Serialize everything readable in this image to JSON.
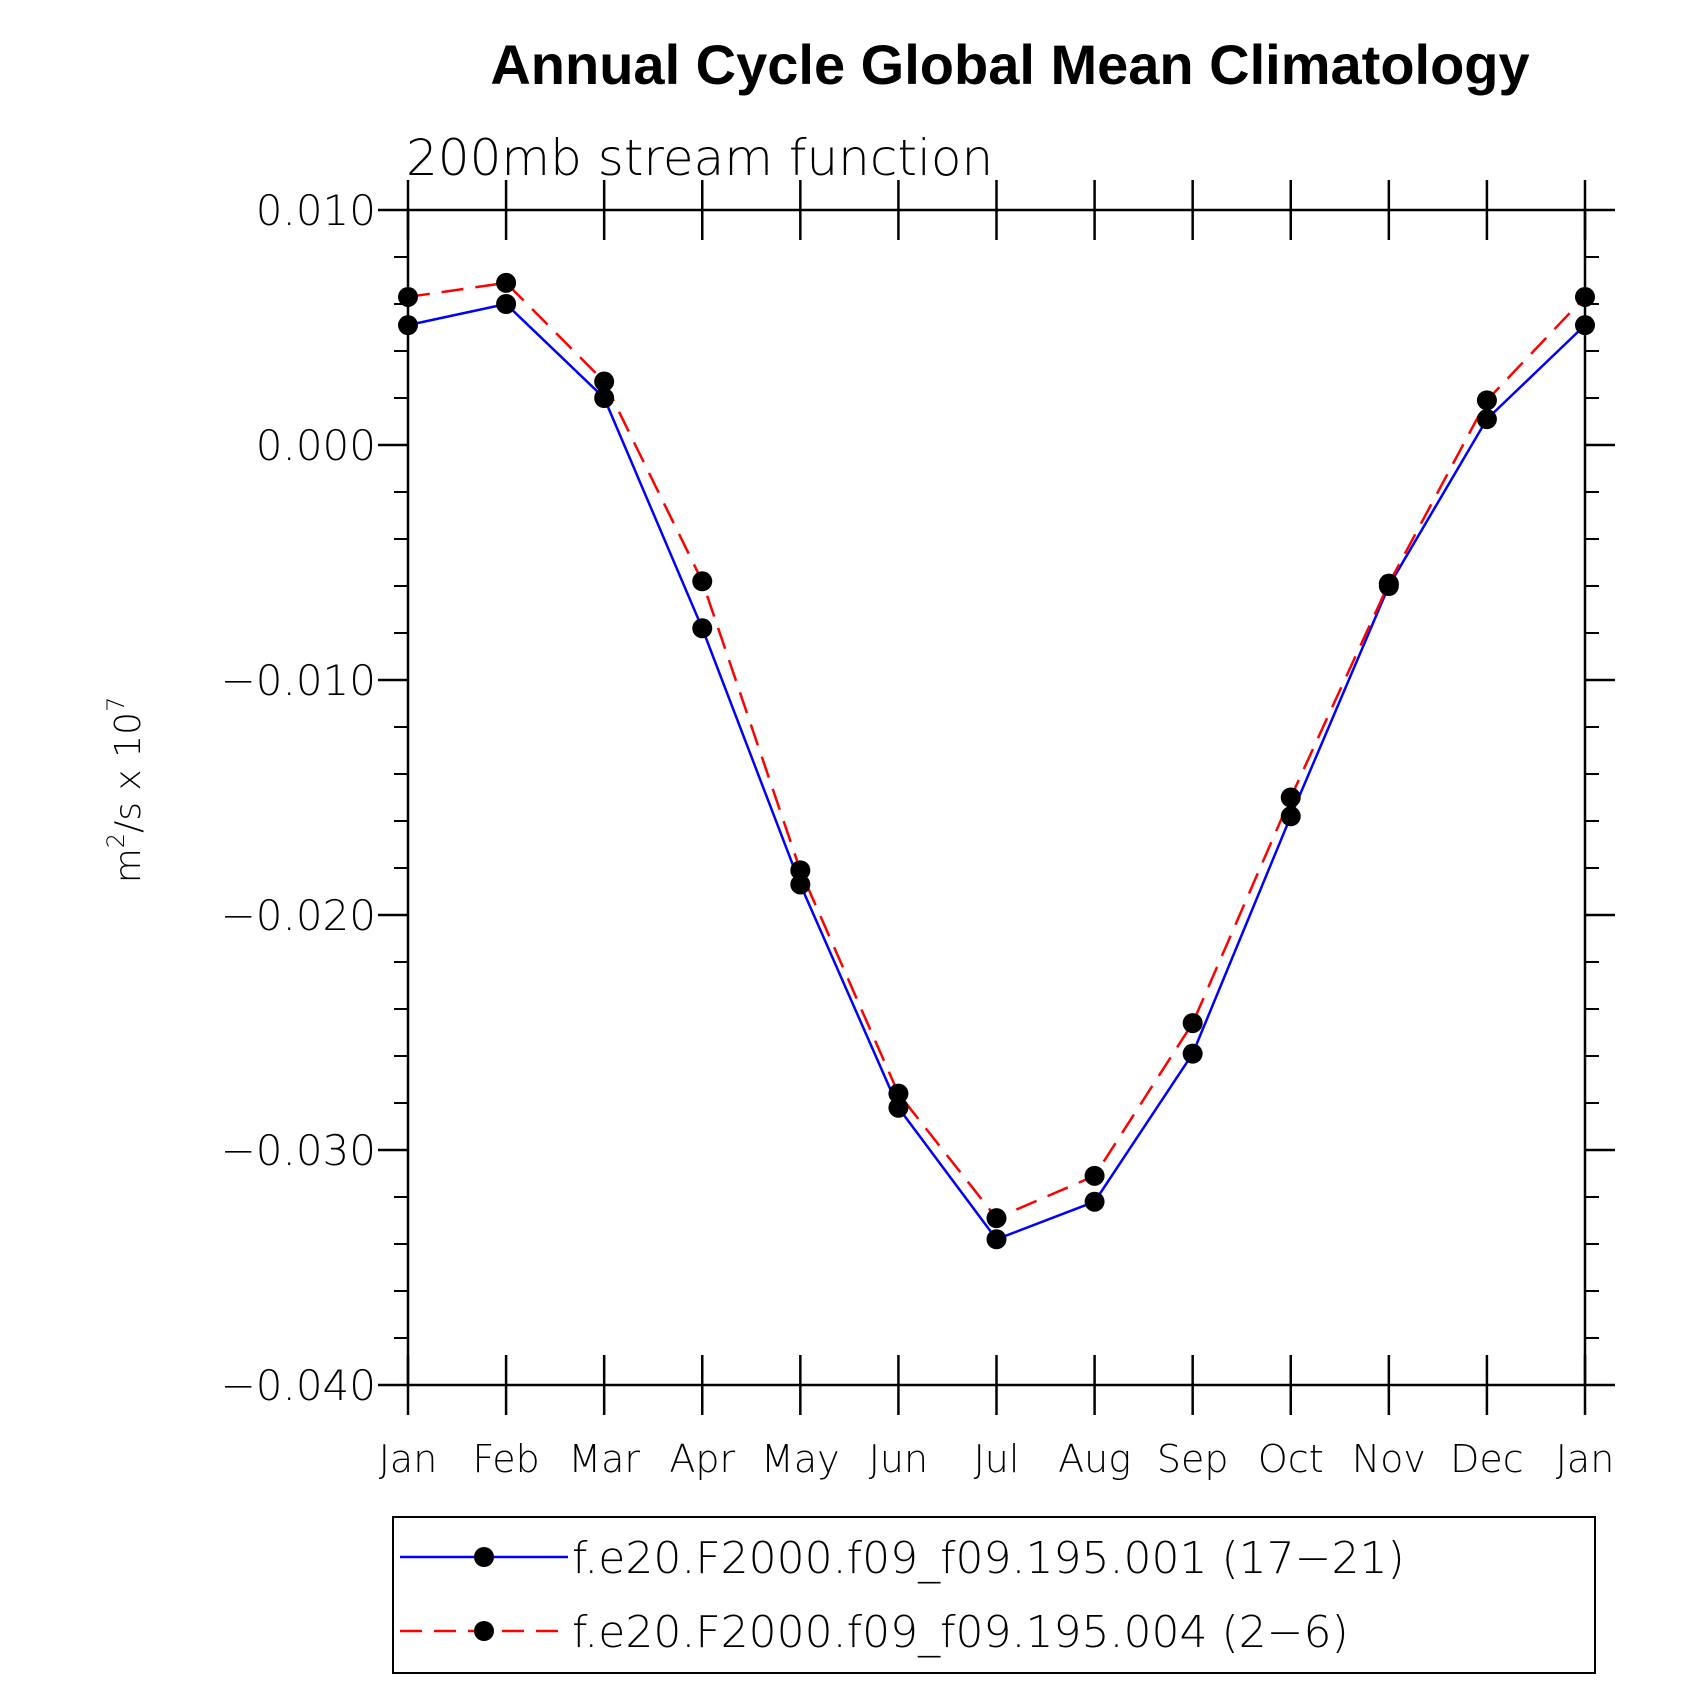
{
  "chart_data": {
    "type": "line",
    "title": "Annual Cycle Global Mean Climatology",
    "subtitle": "200mb stream function",
    "ylabel": {
      "base": "m",
      "sup1": "2",
      "mid": "/s x 10",
      "sup2": "7"
    },
    "ylim": [
      -0.04,
      0.01
    ],
    "y_ticks": [
      0.01,
      0.0,
      -0.01,
      -0.02,
      -0.03,
      -0.04
    ],
    "y_tick_labels": [
      "0.010",
      "0.000",
      "−0.010",
      "−0.020",
      "−0.030",
      "−0.040"
    ],
    "categories": [
      "Jan",
      "Feb",
      "Mar",
      "Apr",
      "May",
      "Jun",
      "Jul",
      "Aug",
      "Sep",
      "Oct",
      "Nov",
      "Dec",
      "Jan"
    ],
    "series": [
      {
        "name": "f.e20.F2000.f09_f09.195.001 (17−21)",
        "color": "#0000ff",
        "dash": "solid",
        "values": [
          0.0051,
          0.006,
          0.002,
          -0.0078,
          -0.0187,
          -0.0282,
          -0.0338,
          -0.0322,
          -0.0259,
          -0.0158,
          -0.006,
          0.0011,
          0.0051
        ]
      },
      {
        "name": "f.e20.F2000.f09_f09.195.004 (2−6)",
        "color": "#ff0000",
        "dash": "dashed",
        "values": [
          0.0063,
          0.0069,
          0.0027,
          -0.0058,
          -0.0181,
          -0.0276,
          -0.0329,
          -0.0311,
          -0.0246,
          -0.015,
          -0.0059,
          0.0019,
          0.0063
        ]
      }
    ],
    "marker": "filled-circle",
    "marker_color": "#000000",
    "grid": false,
    "legend_position": "bottom"
  }
}
